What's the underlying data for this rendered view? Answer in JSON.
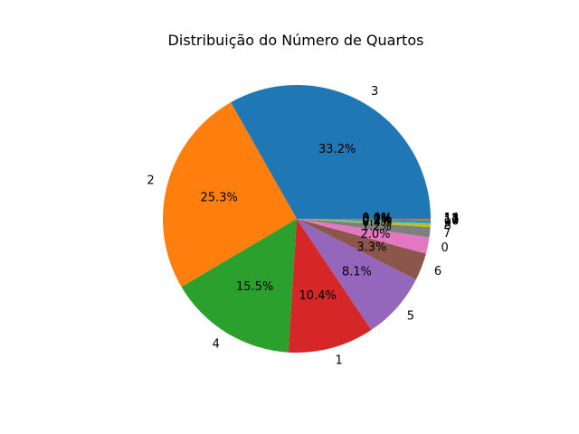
{
  "chart_data": {
    "type": "pie",
    "title": "Distribuição do Número de Quartos",
    "labels": [
      "3",
      "2",
      "4",
      "1",
      "5",
      "6",
      "0",
      "7",
      "8",
      "9",
      "10",
      "11",
      "12",
      "13",
      "14"
    ],
    "values": [
      33.2,
      25.3,
      15.5,
      10.4,
      8.1,
      3.3,
      2.0,
      1.2,
      0.4,
      0.2,
      0.2,
      0.1,
      0.1,
      0.0,
      0.0
    ],
    "percent_labels": [
      "33.2%",
      "25.3%",
      "15.5%",
      "10.4%",
      "8.1%",
      "3.3%",
      "2.0%",
      "1.2%",
      "0.4%",
      "0.2%",
      "0.2%",
      "0.1%",
      "0.1%",
      "0.0%",
      "0.0%"
    ],
    "colors": [
      "#1f77b4",
      "#ff7f0e",
      "#2ca02c",
      "#d62728",
      "#9467bd",
      "#8c564b",
      "#e377c2",
      "#7f7f7f",
      "#bcbd22",
      "#17becf",
      "#1f77b4",
      "#ff7f0e",
      "#2ca02c",
      "#d62728",
      "#9467bd"
    ],
    "start_angle_deg": 0,
    "direction": "counterclockwise"
  }
}
